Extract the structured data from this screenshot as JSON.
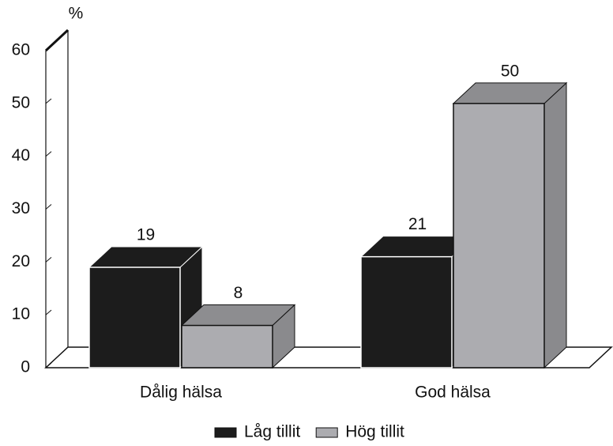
{
  "chart_data": {
    "type": "bar3d",
    "y_label": "%",
    "categories": [
      "Dålig hälsa",
      "God hälsa"
    ],
    "series": [
      {
        "name": "Låg tillit",
        "color": "#1c1c1c",
        "values": [
          19,
          21
        ]
      },
      {
        "name": "Hög tillit",
        "color": "#acacb0",
        "values": [
          8,
          50
        ]
      }
    ],
    "ylim": [
      0,
      60
    ],
    "yticks": [
      0,
      10,
      20,
      30,
      40,
      50,
      60
    ],
    "legend": "bottom"
  }
}
